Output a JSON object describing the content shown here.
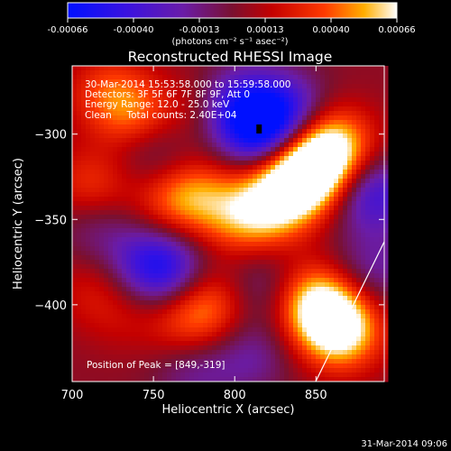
{
  "chart_data": {
    "type": "heatmap",
    "title": "Reconstructed RHESSI Image",
    "xlabel": "Heliocentric X (arcsec)",
    "ylabel": "Heliocentric Y (arcsec)",
    "xlim": [
      700,
      892
    ],
    "ylim": [
      -445,
      -260
    ],
    "x_ticks": [
      700,
      750,
      800,
      850
    ],
    "y_ticks": [
      -300,
      -350,
      -400
    ],
    "colorbar": {
      "ticks": [
        "-0.00066",
        "-0.00040",
        "-0.00013",
        "0.00013",
        "0.00040",
        "0.00066"
      ],
      "range": [
        -0.00066,
        0.00066
      ],
      "unit_label": "(photons cm⁻² s⁻¹ asec⁻²)"
    },
    "annotations": [
      "30-Mar-2014 15:53:58.000 to 15:59:58.000",
      "Detectors: 3F 5F 6F 7F 8F 9F, Att 0",
      "Energy Range: 12.0 - 25.0 keV",
      "Clean     Total counts: 2.40E+04"
    ],
    "peak_label": "Position of Peak = [849,-319]",
    "peak": [
      849,
      -319
    ],
    "minimum_marker": [
      815,
      -297
    ],
    "sources": [
      {
        "x": 849,
        "y": -319,
        "value": 0.00066
      },
      {
        "x": 835,
        "y": -330,
        "value": 0.00052
      },
      {
        "x": 820,
        "y": -345,
        "value": 0.00038
      },
      {
        "x": 862,
        "y": -305,
        "value": 0.00045
      },
      {
        "x": 858,
        "y": -405,
        "value": 0.0005
      },
      {
        "x": 866,
        "y": -418,
        "value": 0.00046
      },
      {
        "x": 845,
        "y": -395,
        "value": 0.00032
      },
      {
        "x": 740,
        "y": -290,
        "value": 0.00033
      },
      {
        "x": 722,
        "y": -275,
        "value": 0.00028
      },
      {
        "x": 783,
        "y": -285,
        "value": 0.00018
      },
      {
        "x": 778,
        "y": -335,
        "value": 0.0003
      },
      {
        "x": 760,
        "y": -340,
        "value": 0.00025
      },
      {
        "x": 800,
        "y": -350,
        "value": 0.00026
      },
      {
        "x": 785,
        "y": -400,
        "value": 0.00034
      },
      {
        "x": 768,
        "y": -410,
        "value": 0.00022
      },
      {
        "x": 712,
        "y": -330,
        "value": 0.00028
      },
      {
        "x": 712,
        "y": -390,
        "value": 0.00015
      },
      {
        "x": 730,
        "y": -405,
        "value": 0.00012
      },
      {
        "x": 815,
        "y": -297,
        "value": -0.00066
      },
      {
        "x": 800,
        "y": -282,
        "value": -0.0004
      },
      {
        "x": 832,
        "y": -285,
        "value": -0.00035
      },
      {
        "x": 758,
        "y": -380,
        "value": -0.00042
      },
      {
        "x": 745,
        "y": -375,
        "value": -0.00025
      },
      {
        "x": 750,
        "y": -310,
        "value": -0.00022
      },
      {
        "x": 818,
        "y": -390,
        "value": -0.00024
      },
      {
        "x": 885,
        "y": -335,
        "value": -0.00045
      },
      {
        "x": 885,
        "y": -380,
        "value": -0.00025
      },
      {
        "x": 715,
        "y": -355,
        "value": -0.00018
      },
      {
        "x": 775,
        "y": -440,
        "value": -0.0002
      },
      {
        "x": 810,
        "y": -430,
        "value": -0.00022
      }
    ]
  },
  "footer": {
    "date": "31-Mar-2014 09:06"
  }
}
